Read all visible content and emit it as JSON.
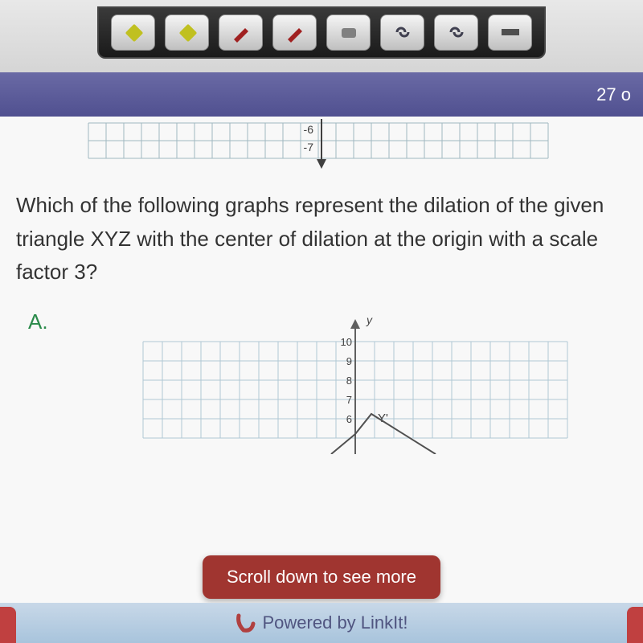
{
  "toolbar": {
    "button_bg": "#e0e0e0",
    "icons": [
      {
        "name": "highlighter-icon",
        "color": "#c0c020"
      },
      {
        "name": "highlighter-icon",
        "color": "#c0c020"
      },
      {
        "name": "pen-icon",
        "color": "#a02020"
      },
      {
        "name": "pen-icon",
        "color": "#a02020"
      },
      {
        "name": "eraser-icon",
        "color": "#808080"
      },
      {
        "name": "link-icon",
        "color": "#404050"
      },
      {
        "name": "link-icon",
        "color": "#404050"
      },
      {
        "name": "ruler-icon",
        "color": "#505050"
      }
    ]
  },
  "header": {
    "status_text": "27 o",
    "bg_color": "#5a5a9a"
  },
  "top_grid": {
    "y_labels": [
      "-6",
      "-7"
    ],
    "cell_size": 22,
    "cols": 26,
    "rows": 2,
    "grid_color": "#a0b8c0",
    "arrow_color": "#505050"
  },
  "question": {
    "text": "Which of the following graphs represent the dilation of the given triangle XYZ with the center of dilation at the origin with a scale factor 3?"
  },
  "answer": {
    "label": "A.",
    "label_color": "#2a8a4a"
  },
  "chart": {
    "axis_label": "y",
    "y_ticks": [
      "10",
      "9",
      "8",
      "7",
      "6"
    ],
    "point_label": "Y'",
    "grid_color": "#b0c8d4",
    "axis_color": "#707070",
    "line_color": "#505050",
    "cell_size": 24,
    "cols": 22,
    "rows": 5,
    "y_axis_col": 11
  },
  "scroll_banner": {
    "text": "Scroll down to see more",
    "bg_color": "#a03530",
    "text_color": "#ffffff"
  },
  "footer": {
    "text": "Powered by LinkIt!",
    "logo_color": "#b04040"
  }
}
